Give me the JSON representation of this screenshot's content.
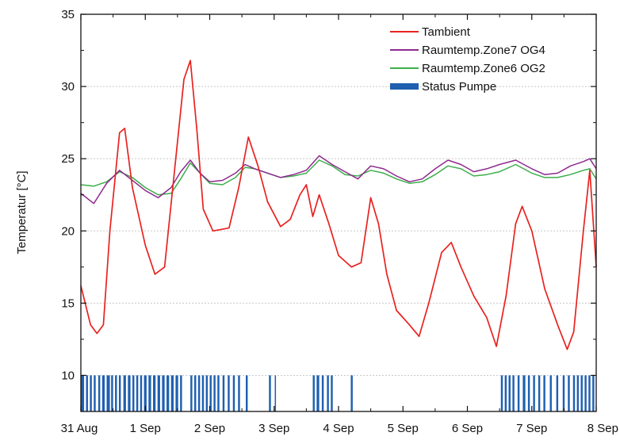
{
  "chart_data": {
    "type": "line",
    "title": "",
    "xlabel": "",
    "ylabel": "Temperatur [°C]",
    "ylim": [
      7.5,
      35
    ],
    "xlim": [
      0,
      8
    ],
    "x_tick_labels": [
      "31 Aug",
      "1 Sep",
      "2 Sep",
      "3 Sep",
      "4 Sep",
      "5 Sep",
      "6 Sep",
      "7 Sep",
      "8 Sep"
    ],
    "y_ticks": [
      10,
      15,
      20,
      25,
      30,
      35
    ],
    "grid": "horizontal dotted",
    "legend_position": "top-right",
    "series": [
      {
        "name": "Tambient",
        "color": "#e8221f",
        "points": [
          [
            0.0,
            16.2
          ],
          [
            0.15,
            13.5
          ],
          [
            0.25,
            12.9
          ],
          [
            0.35,
            13.5
          ],
          [
            0.45,
            20.0
          ],
          [
            0.6,
            26.8
          ],
          [
            0.68,
            27.1
          ],
          [
            0.8,
            23.0
          ],
          [
            1.0,
            19.0
          ],
          [
            1.15,
            17.0
          ],
          [
            1.3,
            17.5
          ],
          [
            1.45,
            24.0
          ],
          [
            1.6,
            30.5
          ],
          [
            1.7,
            31.8
          ],
          [
            1.8,
            27.0
          ],
          [
            1.9,
            21.5
          ],
          [
            2.05,
            20.0
          ],
          [
            2.3,
            20.2
          ],
          [
            2.45,
            23.0
          ],
          [
            2.6,
            26.5
          ],
          [
            2.75,
            24.5
          ],
          [
            2.9,
            22.0
          ],
          [
            3.1,
            20.3
          ],
          [
            3.25,
            20.8
          ],
          [
            3.4,
            22.5
          ],
          [
            3.5,
            23.2
          ],
          [
            3.6,
            21.0
          ],
          [
            3.7,
            22.5
          ],
          [
            3.85,
            20.5
          ],
          [
            4.0,
            18.3
          ],
          [
            4.2,
            17.5
          ],
          [
            4.35,
            17.8
          ],
          [
            4.5,
            22.3
          ],
          [
            4.62,
            20.5
          ],
          [
            4.75,
            17.0
          ],
          [
            4.9,
            14.5
          ],
          [
            5.1,
            13.5
          ],
          [
            5.25,
            12.7
          ],
          [
            5.4,
            15.0
          ],
          [
            5.6,
            18.5
          ],
          [
            5.75,
            19.2
          ],
          [
            5.9,
            17.5
          ],
          [
            6.1,
            15.5
          ],
          [
            6.3,
            14.0
          ],
          [
            6.45,
            12.0
          ],
          [
            6.6,
            15.5
          ],
          [
            6.75,
            20.5
          ],
          [
            6.85,
            21.7
          ],
          [
            7.0,
            20.0
          ],
          [
            7.2,
            16.0
          ],
          [
            7.4,
            13.5
          ],
          [
            7.55,
            11.8
          ],
          [
            7.65,
            13.0
          ],
          [
            7.8,
            20.0
          ],
          [
            7.9,
            24.2
          ],
          [
            8.0,
            17.5
          ]
        ]
      },
      {
        "name": "Raumtemp.Zone7 OG4",
        "color": "#8e2a8e",
        "points": [
          [
            0.0,
            22.6
          ],
          [
            0.2,
            21.9
          ],
          [
            0.4,
            23.3
          ],
          [
            0.6,
            24.2
          ],
          [
            0.8,
            23.5
          ],
          [
            1.0,
            22.8
          ],
          [
            1.2,
            22.3
          ],
          [
            1.4,
            23.0
          ],
          [
            1.55,
            24.1
          ],
          [
            1.7,
            24.9
          ],
          [
            1.85,
            24.0
          ],
          [
            2.0,
            23.4
          ],
          [
            2.2,
            23.5
          ],
          [
            2.4,
            24.0
          ],
          [
            2.55,
            24.6
          ],
          [
            2.7,
            24.3
          ],
          [
            2.9,
            24.0
          ],
          [
            3.1,
            23.7
          ],
          [
            3.3,
            23.9
          ],
          [
            3.5,
            24.2
          ],
          [
            3.7,
            25.2
          ],
          [
            3.9,
            24.6
          ],
          [
            4.1,
            24.1
          ],
          [
            4.3,
            23.6
          ],
          [
            4.5,
            24.5
          ],
          [
            4.7,
            24.3
          ],
          [
            4.9,
            23.8
          ],
          [
            5.1,
            23.4
          ],
          [
            5.3,
            23.6
          ],
          [
            5.5,
            24.3
          ],
          [
            5.7,
            24.9
          ],
          [
            5.9,
            24.6
          ],
          [
            6.1,
            24.1
          ],
          [
            6.3,
            24.3
          ],
          [
            6.5,
            24.6
          ],
          [
            6.75,
            24.9
          ],
          [
            7.0,
            24.3
          ],
          [
            7.2,
            23.9
          ],
          [
            7.4,
            24.0
          ],
          [
            7.6,
            24.5
          ],
          [
            7.8,
            24.8
          ],
          [
            7.9,
            25.0
          ],
          [
            8.0,
            24.3
          ]
        ]
      },
      {
        "name": "Raumtemp.Zone6 OG2",
        "color": "#3cae4a",
        "points": [
          [
            0.0,
            23.2
          ],
          [
            0.2,
            23.1
          ],
          [
            0.4,
            23.4
          ],
          [
            0.6,
            24.1
          ],
          [
            0.8,
            23.7
          ],
          [
            1.0,
            23.0
          ],
          [
            1.2,
            22.5
          ],
          [
            1.4,
            22.6
          ],
          [
            1.55,
            23.6
          ],
          [
            1.7,
            24.7
          ],
          [
            1.85,
            24.0
          ],
          [
            2.0,
            23.3
          ],
          [
            2.2,
            23.2
          ],
          [
            2.4,
            23.7
          ],
          [
            2.55,
            24.4
          ],
          [
            2.7,
            24.3
          ],
          [
            2.9,
            24.0
          ],
          [
            3.1,
            23.7
          ],
          [
            3.3,
            23.8
          ],
          [
            3.5,
            24.0
          ],
          [
            3.7,
            24.9
          ],
          [
            3.9,
            24.5
          ],
          [
            4.1,
            23.9
          ],
          [
            4.3,
            23.8
          ],
          [
            4.5,
            24.2
          ],
          [
            4.7,
            24.0
          ],
          [
            4.9,
            23.6
          ],
          [
            5.1,
            23.3
          ],
          [
            5.3,
            23.4
          ],
          [
            5.5,
            23.9
          ],
          [
            5.7,
            24.5
          ],
          [
            5.9,
            24.3
          ],
          [
            6.1,
            23.8
          ],
          [
            6.3,
            23.9
          ],
          [
            6.5,
            24.1
          ],
          [
            6.75,
            24.6
          ],
          [
            7.0,
            24.0
          ],
          [
            7.2,
            23.7
          ],
          [
            7.4,
            23.7
          ],
          [
            7.6,
            23.9
          ],
          [
            7.8,
            24.2
          ],
          [
            7.9,
            24.3
          ],
          [
            8.0,
            23.6
          ]
        ]
      },
      {
        "name": "Status Pumpe",
        "color": "#1f5fb0",
        "type": "status-bars",
        "range": [
          7.5,
          10
        ],
        "intervals": [
          [
            0.0,
            0.05
          ],
          [
            0.08,
            0.11
          ],
          [
            0.14,
            0.17
          ],
          [
            0.2,
            0.23
          ],
          [
            0.27,
            0.3
          ],
          [
            0.33,
            0.37
          ],
          [
            0.4,
            0.45
          ],
          [
            0.47,
            0.5
          ],
          [
            0.53,
            0.56
          ],
          [
            0.59,
            0.62
          ],
          [
            0.66,
            0.7
          ],
          [
            0.73,
            0.77
          ],
          [
            0.8,
            0.83
          ],
          [
            0.86,
            0.89
          ],
          [
            0.92,
            0.95
          ],
          [
            0.98,
            1.02
          ],
          [
            1.05,
            1.09
          ],
          [
            1.12,
            1.16
          ],
          [
            1.19,
            1.23
          ],
          [
            1.26,
            1.3
          ],
          [
            1.33,
            1.37
          ],
          [
            1.4,
            1.44
          ],
          [
            1.47,
            1.51
          ],
          [
            1.54,
            1.57
          ],
          [
            1.7,
            1.73
          ],
          [
            1.76,
            1.79
          ],
          [
            1.82,
            1.85
          ],
          [
            1.88,
            1.91
          ],
          [
            1.94,
            1.97
          ],
          [
            2.0,
            2.03
          ],
          [
            2.06,
            2.09
          ],
          [
            2.12,
            2.15
          ],
          [
            2.2,
            2.23
          ],
          [
            2.28,
            2.31
          ],
          [
            2.36,
            2.39
          ],
          [
            2.44,
            2.47
          ],
          [
            2.56,
            2.59
          ],
          [
            2.92,
            2.95
          ],
          [
            3.01,
            3.02
          ],
          [
            3.6,
            3.63
          ],
          [
            3.66,
            3.7
          ],
          [
            3.74,
            3.77
          ],
          [
            3.82,
            3.85
          ],
          [
            3.88,
            3.91
          ],
          [
            4.19,
            4.22
          ],
          [
            6.52,
            6.55
          ],
          [
            6.58,
            6.61
          ],
          [
            6.64,
            6.67
          ],
          [
            6.7,
            6.73
          ],
          [
            6.78,
            6.81
          ],
          [
            6.86,
            6.9
          ],
          [
            6.94,
            6.97
          ],
          [
            7.02,
            7.05
          ],
          [
            7.1,
            7.13
          ],
          [
            7.18,
            7.21
          ],
          [
            7.28,
            7.31
          ],
          [
            7.38,
            7.41
          ],
          [
            7.48,
            7.51
          ],
          [
            7.56,
            7.59
          ],
          [
            7.64,
            7.67
          ],
          [
            7.7,
            7.73
          ],
          [
            7.76,
            7.79
          ],
          [
            7.82,
            7.85
          ],
          [
            7.88,
            7.91
          ],
          [
            7.94,
            7.97
          ]
        ]
      }
    ]
  },
  "legend": [
    {
      "label": "Tambient",
      "color": "#e8221f",
      "kind": "line"
    },
    {
      "label": "Raumtemp.Zone7 OG4",
      "color": "#8e2a8e",
      "kind": "line"
    },
    {
      "label": "Raumtemp.Zone6 OG2",
      "color": "#3cae4a",
      "kind": "line"
    },
    {
      "label": "Status Pumpe",
      "color": "#1f5fb0",
      "kind": "bar"
    }
  ]
}
